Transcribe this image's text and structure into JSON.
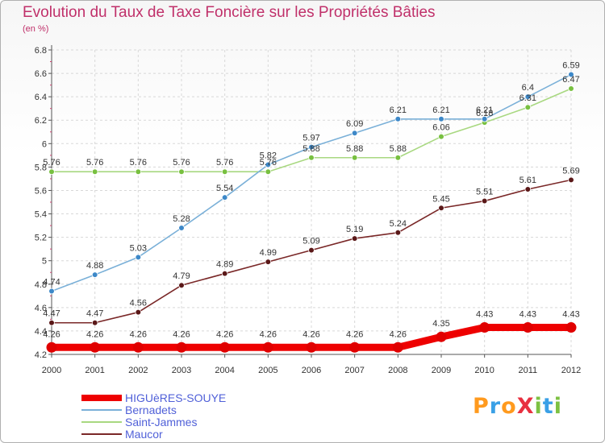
{
  "title": "Evolution du Taux de Taxe Foncière sur les Propriétés Bâties",
  "subtitle": "(en %)",
  "logo": {
    "text": "ProXiti",
    "letters": [
      {
        "ch": "P",
        "color": "#ff9a1e"
      },
      {
        "ch": "r",
        "color": "#3aa0e6"
      },
      {
        "ch": "o",
        "color": "#ff9a1e"
      },
      {
        "ch": "X",
        "color": "#e83040"
      },
      {
        "ch": "i",
        "color": "#7dc142"
      },
      {
        "ch": "t",
        "color": "#3aa0e6"
      },
      {
        "ch": "i",
        "color": "#7dc142"
      }
    ]
  },
  "chart_data": {
    "type": "line",
    "x": [
      2000,
      2001,
      2002,
      2003,
      2004,
      2005,
      2006,
      2007,
      2008,
      2009,
      2010,
      2011,
      2012
    ],
    "x_tick_labels": [
      "2000",
      "2001",
      "2002",
      "2003",
      "2004",
      "2005",
      "2006",
      "2007",
      "2008",
      "2009",
      "2010",
      "2011",
      "2012"
    ],
    "ylim": [
      4.2,
      6.8
    ],
    "y_ticks": [
      4.2,
      4.4,
      4.6,
      4.8,
      5,
      5.2,
      5.4,
      5.6,
      5.8,
      6,
      6.2,
      6.4,
      6.6,
      6.8
    ],
    "y_tick_labels": [
      "4.2",
      "4.4",
      "4.6",
      "4.8",
      "5",
      "5.2",
      "5.4",
      "5.6",
      "5.8",
      "6",
      "6.2",
      "6.4",
      "6.6",
      "6.8"
    ],
    "grid": true,
    "legend_position": "bottom-left",
    "series": [
      {
        "name": "HIGUèRES-SOUYE",
        "color": "#ee0000",
        "marker_color": "#e00000",
        "values": [
          4.26,
          4.26,
          4.26,
          4.26,
          4.26,
          4.26,
          4.26,
          4.26,
          4.26,
          4.35,
          4.43,
          4.43,
          4.43
        ],
        "labels": [
          "4.26",
          "4.26",
          "4.26",
          "4.26",
          "4.26",
          "4.26",
          "4.26",
          "4.26",
          "4.26",
          "4.35",
          "4.43",
          "4.43",
          "4.43"
        ]
      },
      {
        "name": "Bernadets",
        "color": "#7ab0d8",
        "marker_color": "#3d88c8",
        "values": [
          4.74,
          4.88,
          5.03,
          5.28,
          5.54,
          5.82,
          5.97,
          6.09,
          6.21,
          6.21,
          6.21,
          6.4,
          6.59
        ],
        "labels": [
          "4.74",
          "4.88",
          "5.03",
          "5.28",
          "5.54",
          "5.82",
          "5.97",
          "6.09",
          "6.21",
          "6.21",
          "6.21",
          "6.4",
          "6.59"
        ]
      },
      {
        "name": "Saint-Jammes",
        "color": "#a8d880",
        "marker_color": "#78c040",
        "values": [
          5.76,
          5.76,
          5.76,
          5.76,
          5.76,
          5.76,
          5.88,
          5.88,
          5.88,
          6.06,
          6.18,
          6.31,
          6.47
        ],
        "labels": [
          "5.76",
          "5.76",
          "5.76",
          "5.76",
          "5.76",
          "5.76",
          "5.88",
          "5.88",
          "5.88",
          "6.06",
          "6.18",
          "6.31",
          "6.47"
        ]
      },
      {
        "name": "Maucor",
        "color": "#7a2828",
        "marker_color": "#5a1818",
        "values": [
          4.47,
          4.47,
          4.56,
          4.79,
          4.89,
          4.99,
          5.09,
          5.19,
          5.24,
          5.45,
          5.51,
          5.61,
          5.69
        ],
        "labels": [
          "4.47",
          "4.47",
          "4.56",
          "4.79",
          "4.89",
          "4.99",
          "5.09",
          "5.19",
          "5.24",
          "5.45",
          "5.51",
          "5.61",
          "5.69"
        ]
      }
    ]
  }
}
